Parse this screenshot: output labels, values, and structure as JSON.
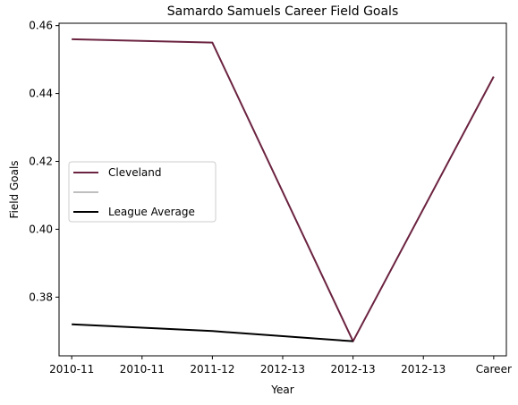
{
  "chart_data": {
    "type": "line",
    "title": "Samardo Samuels Career Field Goals",
    "xlabel": "Year",
    "ylabel": "Field Goals",
    "x_tick_labels": [
      "2010-11",
      "2010-11",
      "2011-12",
      "2012-13",
      "2012-13",
      "2012-13",
      "Career"
    ],
    "ylim": [
      0.3627,
      0.4607
    ],
    "y_ticks": [
      0.38,
      0.4,
      0.42,
      0.44,
      0.46
    ],
    "y_tick_labels": [
      "0.38",
      "0.40",
      "0.42",
      "0.44",
      "0.46"
    ],
    "grid": false,
    "legend_position": "center-left",
    "series": [
      {
        "name": "Cleveland",
        "color": "#6b2340",
        "x_index": [
          0,
          2,
          4,
          6
        ],
        "values": [
          0.456,
          0.455,
          0.367,
          0.445
        ]
      },
      {
        "name": "",
        "color": "#bfbfbf",
        "x_index": [],
        "values": []
      },
      {
        "name": "League Average",
        "color": "#000000",
        "x_index": [
          0,
          2,
          4
        ],
        "values": [
          0.372,
          0.37,
          0.367
        ]
      }
    ]
  }
}
